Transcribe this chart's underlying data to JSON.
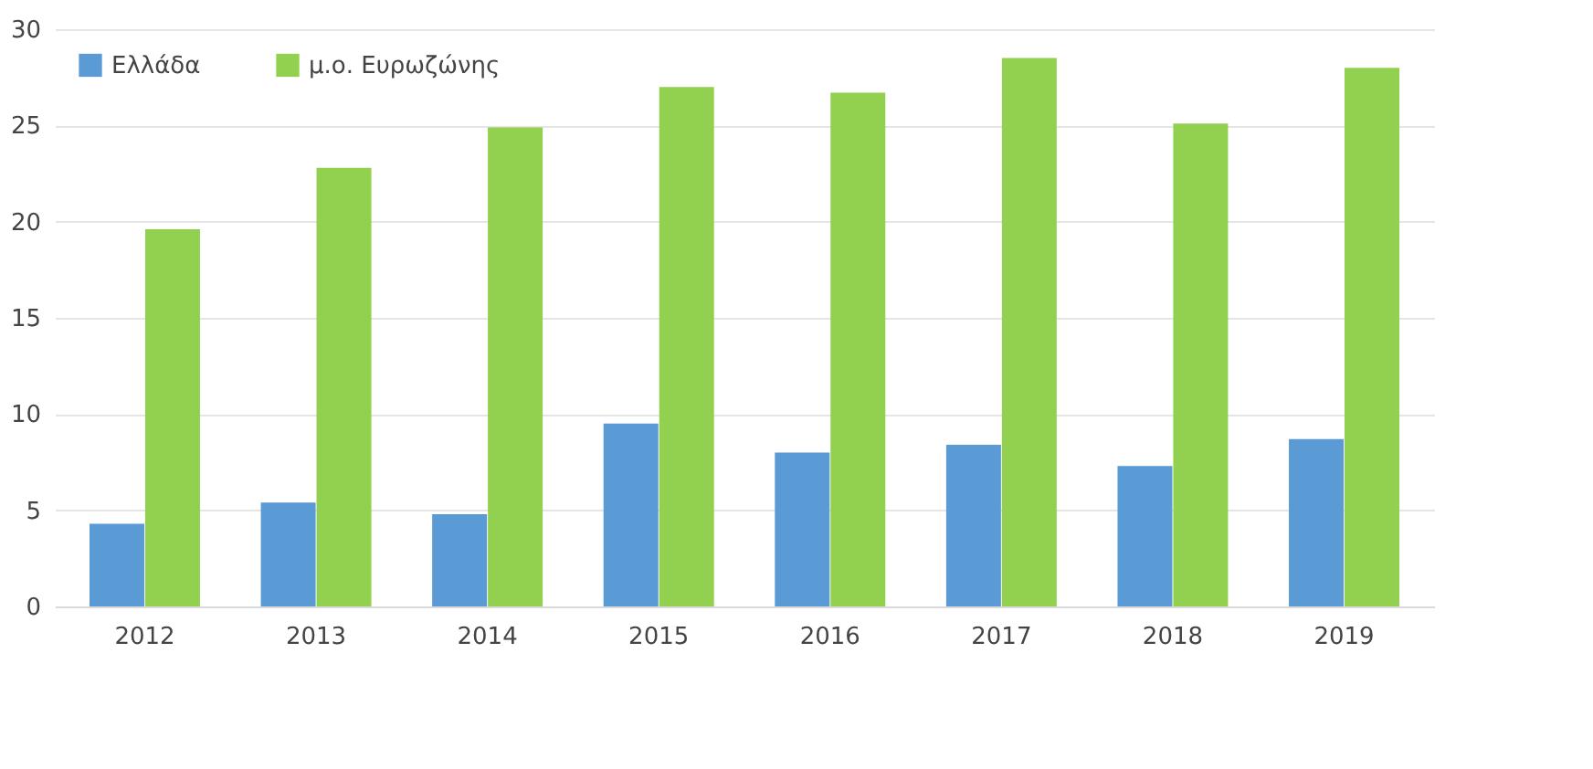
{
  "chart_data": {
    "type": "bar",
    "categories": [
      "2012",
      "2013",
      "2014",
      "2015",
      "2016",
      "2017",
      "2018",
      "2019"
    ],
    "series": [
      {
        "name": "Ελλάδα",
        "color": "#5b9bd5",
        "values": [
          4.3,
          5.4,
          4.8,
          9.5,
          8.0,
          8.4,
          7.3,
          8.7
        ]
      },
      {
        "name": "μ.ο. Ευρωζώνης",
        "color": "#92d050",
        "values": [
          19.6,
          22.8,
          24.9,
          27.0,
          26.7,
          28.5,
          25.1,
          28.0
        ]
      }
    ],
    "ylim": [
      0,
      30
    ],
    "yticks": [
      0,
      5,
      10,
      15,
      20,
      25,
      30
    ],
    "grid": "y",
    "legend": "top left"
  }
}
